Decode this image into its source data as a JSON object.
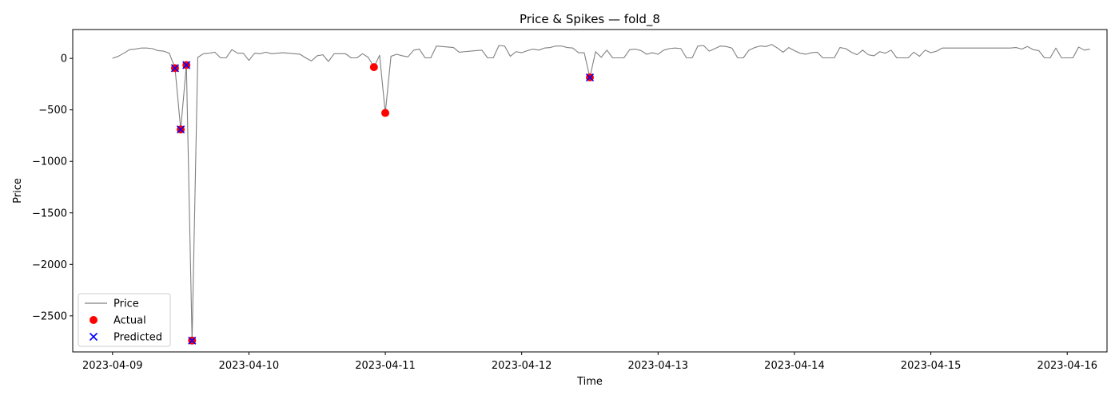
{
  "chart_data": {
    "type": "line",
    "title": "Price & Spikes — fold_8",
    "xlabel": "Time",
    "ylabel": "Price",
    "x_start": "2023-04-09T00:00",
    "x_step_hours": 1,
    "xlim_hours": [
      -7,
      175
    ],
    "ylim": [
      -2850,
      280
    ],
    "x_ticks": [
      {
        "label": "2023-04-09",
        "hour": 0
      },
      {
        "label": "2023-04-10",
        "hour": 24
      },
      {
        "label": "2023-04-11",
        "hour": 48
      },
      {
        "label": "2023-04-12",
        "hour": 72
      },
      {
        "label": "2023-04-13",
        "hour": 96
      },
      {
        "label": "2023-04-14",
        "hour": 120
      },
      {
        "label": "2023-04-15",
        "hour": 144
      },
      {
        "label": "2023-04-16",
        "hour": 168
      }
    ],
    "y_ticks": [
      0,
      -500,
      -1000,
      -1500,
      -2000,
      -2500
    ],
    "y_tick_labels": [
      "0",
      "−500",
      "−1000",
      "−1500",
      "−2000",
      "−2500"
    ],
    "series": [
      {
        "name": "Price",
        "color": "#808080",
        "values": [
          0,
          20,
          50,
          85,
          90,
          100,
          100,
          95,
          75,
          70,
          50,
          -95,
          -690,
          -65,
          -2740,
          10,
          45,
          50,
          60,
          5,
          5,
          85,
          50,
          50,
          -20,
          50,
          45,
          60,
          45,
          50,
          55,
          50,
          45,
          40,
          5,
          -25,
          25,
          35,
          -30,
          45,
          45,
          45,
          5,
          5,
          45,
          10,
          -85,
          30,
          -530,
          20,
          40,
          25,
          15,
          80,
          90,
          5,
          5,
          120,
          115,
          110,
          105,
          60,
          65,
          70,
          75,
          80,
          5,
          5,
          125,
          120,
          20,
          65,
          55,
          75,
          90,
          80,
          100,
          105,
          120,
          120,
          105,
          100,
          55,
          55,
          -185,
          65,
          10,
          80,
          5,
          5,
          5,
          85,
          90,
          75,
          40,
          55,
          40,
          80,
          95,
          100,
          95,
          5,
          5,
          120,
          125,
          70,
          95,
          120,
          115,
          100,
          5,
          5,
          80,
          105,
          120,
          115,
          135,
          100,
          60,
          105,
          75,
          50,
          40,
          55,
          60,
          5,
          5,
          5,
          105,
          95,
          60,
          35,
          80,
          35,
          25,
          65,
          50,
          80,
          5,
          5,
          5,
          60,
          20,
          80,
          55,
          70,
          100,
          100,
          100,
          100,
          100,
          100,
          100,
          100,
          100,
          100,
          100,
          100,
          100,
          105,
          90,
          115,
          85,
          75,
          5,
          5,
          100,
          5,
          5,
          5,
          110,
          80,
          90
        ]
      }
    ],
    "actual_spikes": {
      "name": "Actual",
      "color": "#ff0000",
      "points": [
        {
          "hour": 11,
          "value": -95
        },
        {
          "hour": 12,
          "value": -690
        },
        {
          "hour": 13,
          "value": -65
        },
        {
          "hour": 14,
          "value": -2740
        },
        {
          "hour": 46,
          "value": -85
        },
        {
          "hour": 48,
          "value": -530
        },
        {
          "hour": 84,
          "value": -185
        }
      ]
    },
    "predicted_spikes": {
      "name": "Predicted",
      "color": "#0000ff",
      "points": [
        {
          "hour": 11,
          "value": -95
        },
        {
          "hour": 12,
          "value": -690
        },
        {
          "hour": 13,
          "value": -65
        },
        {
          "hour": 14,
          "value": -2740
        },
        {
          "hour": 84,
          "value": -185
        }
      ]
    },
    "legend": {
      "placement": "lower-left",
      "entries": [
        "Price",
        "Actual",
        "Predicted"
      ]
    }
  }
}
